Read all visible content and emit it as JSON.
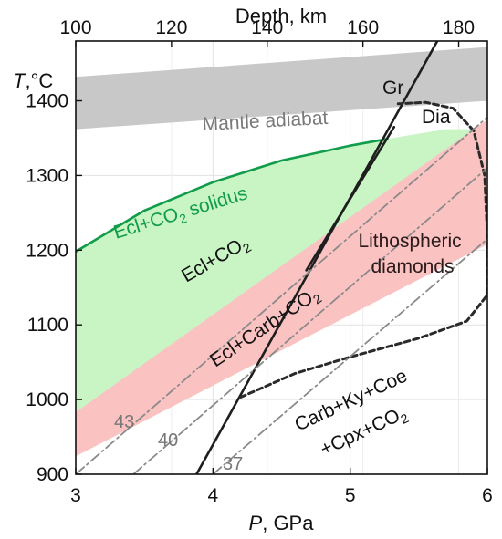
{
  "chart_data": {
    "type": "line",
    "x_axis": {
      "label": "P, GPa",
      "range": [
        3,
        6
      ],
      "ticks": [
        3,
        4,
        5,
        6
      ]
    },
    "y_axis": {
      "label": "T,°C",
      "range": [
        900,
        1480
      ],
      "ticks": [
        900,
        1000,
        1100,
        1200,
        1300,
        1400
      ]
    },
    "top_axis": {
      "label": "Depth, km",
      "range_km": [
        100,
        186
      ],
      "ticks": [
        100,
        120,
        140,
        160,
        180
      ]
    },
    "grid": true,
    "regions": [
      {
        "name": "Mantle adiabat",
        "color": "#c8c8c8",
        "lower": [
          [
            3,
            1362
          ],
          [
            6,
            1400
          ]
        ],
        "upper": [
          [
            3,
            1432
          ],
          [
            6,
            1472
          ]
        ]
      },
      {
        "name": "Ecl+CO2 field",
        "color": "#c9f5c4",
        "polygon": [
          [
            3,
            1200
          ],
          [
            3.5,
            1255
          ],
          [
            4.0,
            1292
          ],
          [
            4.5,
            1320
          ],
          [
            5.0,
            1338
          ],
          [
            5.3,
            1350
          ],
          [
            5.7,
            1362
          ],
          [
            6,
            1362
          ],
          [
            6,
            1310
          ],
          [
            3,
            983
          ]
        ]
      },
      {
        "name": "Ecl+Carb+CO2 field",
        "color": "#fbc2c2",
        "polygon": [
          [
            3,
            983
          ],
          [
            6,
            1375
          ],
          [
            6,
            1208
          ],
          [
            3,
            924
          ]
        ]
      }
    ],
    "series": [
      {
        "name": "Ecl+CO2 solidus",
        "style": "solid",
        "color": "#109c4a",
        "points": [
          [
            3,
            1198
          ],
          [
            3.5,
            1253
          ],
          [
            4.0,
            1291
          ],
          [
            4.5,
            1320
          ],
          [
            5.0,
            1340
          ],
          [
            5.27,
            1349
          ]
        ]
      },
      {
        "name": "Gr-Dia",
        "style": "solid",
        "color": "#1e1e1e",
        "points": [
          [
            3.88,
            900
          ],
          [
            5.65,
            1485
          ]
        ]
      },
      {
        "name": "Ecl+Carb+CO2 boundary",
        "style": "solid",
        "color": "#1e1e1e",
        "points": [
          [
            4.68,
            1173
          ],
          [
            5.32,
            1365
          ]
        ]
      },
      {
        "name": "Lithospheric diamonds",
        "style": "dashed",
        "color": "#2a2a2a",
        "points": [
          [
            4.2,
            1003
          ],
          [
            4.6,
            1035
          ],
          [
            5.0,
            1057
          ],
          [
            5.5,
            1082
          ],
          [
            5.85,
            1105
          ],
          [
            6.0,
            1140
          ],
          [
            6.0,
            1220
          ],
          [
            5.98,
            1300
          ],
          [
            5.9,
            1360
          ],
          [
            5.75,
            1390
          ],
          [
            5.55,
            1398
          ],
          [
            5.35,
            1396
          ]
        ]
      },
      {
        "name": "43",
        "style": "dashdot",
        "color": "#8a8a8a",
        "points": [
          [
            3,
            900
          ],
          [
            6,
            1378
          ]
        ]
      },
      {
        "name": "40",
        "style": "dashdot",
        "color": "#8a8a8a",
        "points": [
          [
            3.42,
            900
          ],
          [
            6,
            1310
          ]
        ]
      },
      {
        "name": "37",
        "style": "dashdot",
        "color": "#8a8a8a",
        "points": [
          [
            4.0,
            900
          ],
          [
            6,
            1215
          ]
        ]
      }
    ]
  },
  "labels": {
    "x_title_var": "P",
    "x_title_unit": ", GPa",
    "y_title_var": "T",
    "y_title_unit": ",°C",
    "top_title": "Depth, km",
    "mantle_adiabat": "Mantle adiabat",
    "gr": "Gr",
    "dia": "Dia",
    "solidus_a": "Ecl+CO",
    "solidus_sub": "2",
    "solidus_b": " solidus",
    "ecl_co2_a": "Ecl+CO",
    "ecl_co2_sub": "2",
    "ecl_carb_a": "Ecl+Carb+CO",
    "ecl_carb_sub": "2",
    "litho_1": "Lithospheric",
    "litho_2": "diamonds",
    "assemblage_1": "Carb+Ky+Coe",
    "assemblage_2": "+Cpx+CO",
    "assemblage_sub": "2",
    "geotherm_43": "43",
    "geotherm_40": "40",
    "geotherm_37": "37"
  },
  "colors": {
    "solidus": "#109c4a",
    "mantle_adiabat_text": "#7a7a7a",
    "litho_text": "#2b1a1a",
    "geotherm_text": "#777777"
  }
}
